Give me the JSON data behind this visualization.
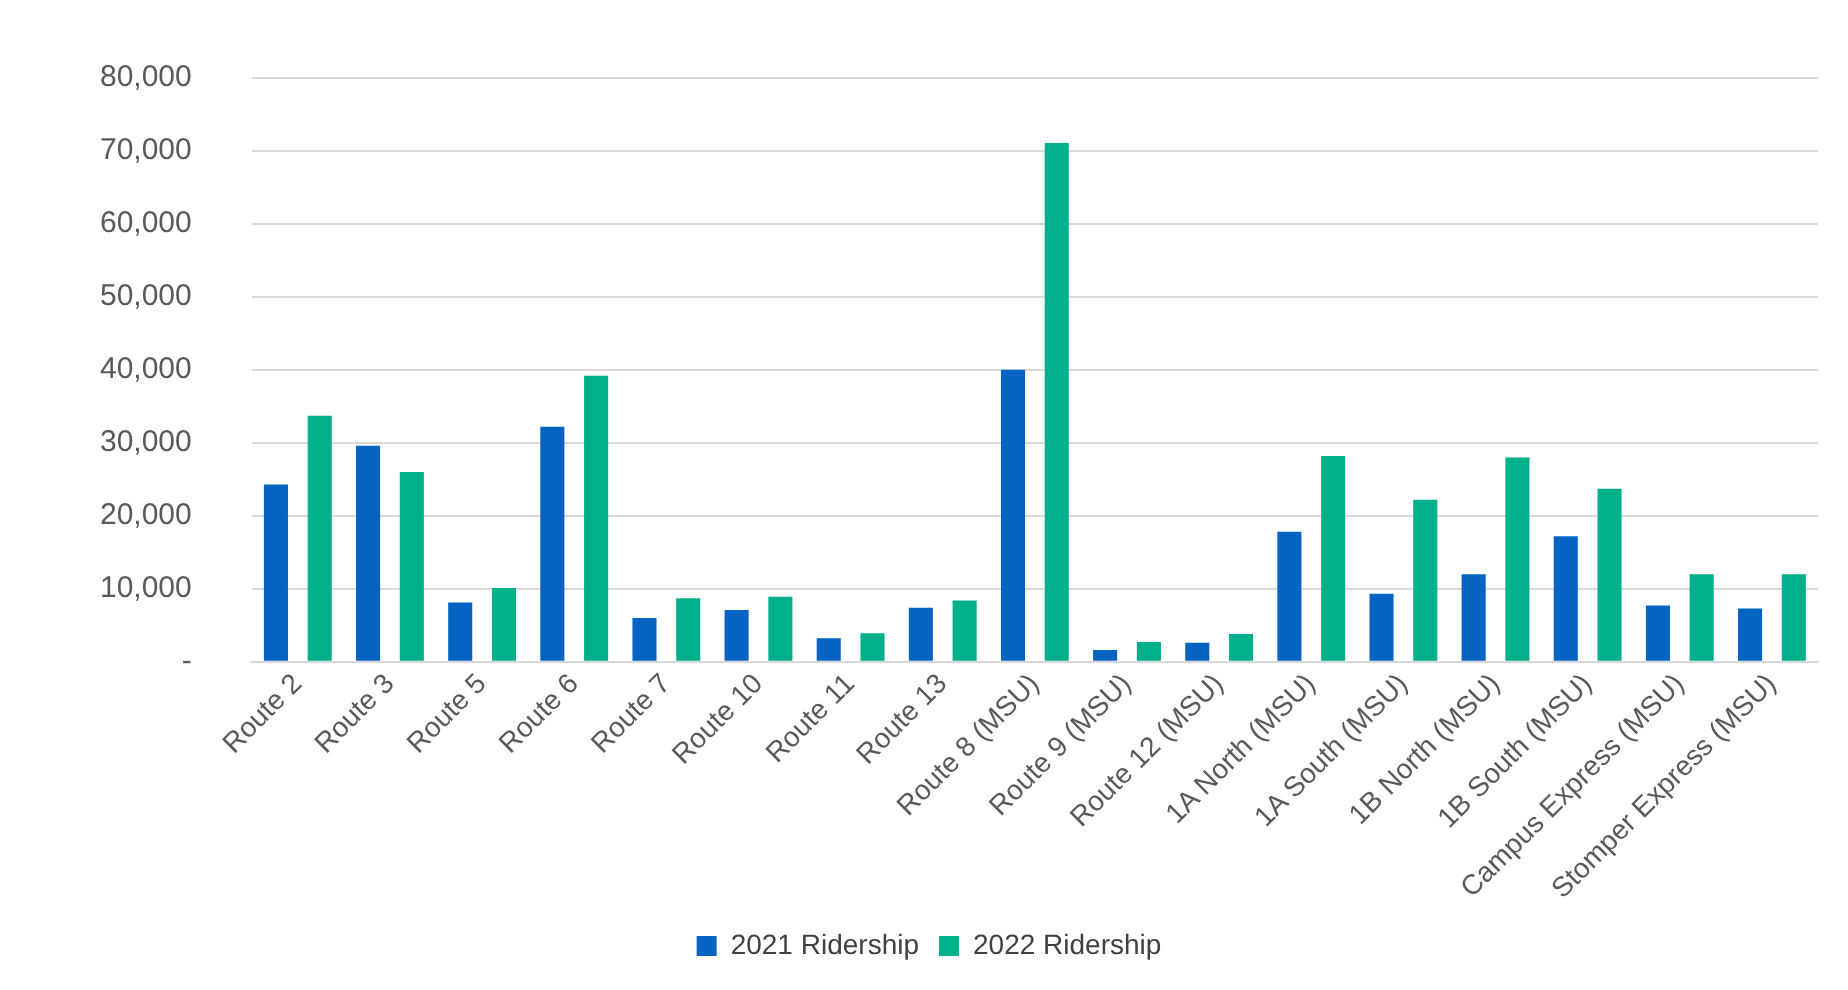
{
  "chart_data": {
    "type": "bar",
    "categories": [
      "Route 2",
      "Route 3",
      "Route 5",
      "Route 6",
      "Route 7",
      "Route 10",
      "Route 11",
      "Route 13",
      "Route 8 (MSU)",
      "Route 9 (MSU)",
      "Route 12 (MSU)",
      "1A North (MSU)",
      "1A South (MSU)",
      "1B North (MSU)",
      "1B South (MSU)",
      "Campus Express (MSU)",
      "Stomper Express (MSU)"
    ],
    "series": [
      {
        "name": "2021 Ridership",
        "color": "#0563c1",
        "values": [
          24300,
          29600,
          8100,
          32200,
          6000,
          7100,
          3200,
          7400,
          40000,
          1600,
          2600,
          17800,
          9300,
          12000,
          17200,
          7700,
          7300
        ]
      },
      {
        "name": "2022 Ridership",
        "color": "#00b08a",
        "values": [
          33700,
          26000,
          10100,
          39200,
          8700,
          8900,
          3900,
          8400,
          71100,
          2700,
          3800,
          28200,
          22200,
          28000,
          23700,
          12000,
          12000
        ]
      }
    ],
    "ylim": [
      0,
      80000
    ],
    "yticks": [
      {
        "value": 0,
        "label": "-"
      },
      {
        "value": 10000,
        "label": "10,000"
      },
      {
        "value": 20000,
        "label": "20,000"
      },
      {
        "value": 30000,
        "label": "30,000"
      },
      {
        "value": 40000,
        "label": "40,000"
      },
      {
        "value": 50000,
        "label": "50,000"
      },
      {
        "value": 60000,
        "label": "60,000"
      },
      {
        "value": 70000,
        "label": "70,000"
      },
      {
        "value": 80000,
        "label": "80,000"
      }
    ],
    "grid": "y",
    "legend": "bottom"
  }
}
